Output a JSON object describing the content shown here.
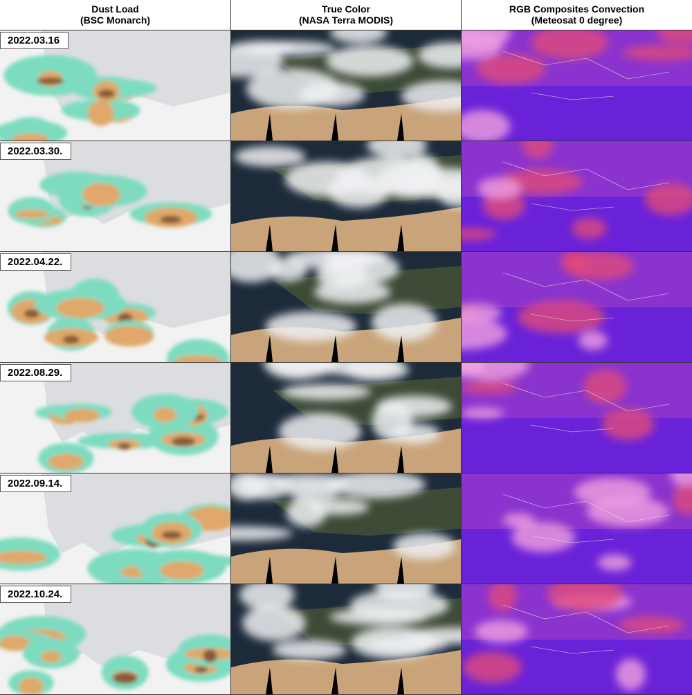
{
  "columns": [
    {
      "title": "Dust Load",
      "subtitle": "(BSC Monarch)"
    },
    {
      "title": "True Color",
      "subtitle": "(NASA Terra MODIS)"
    },
    {
      "title": "RGB Composites Convection",
      "subtitle": "(Meteosat 0 degree)"
    }
  ],
  "rows": [
    {
      "date": "2022.03.16"
    },
    {
      "date": "2022.03.30."
    },
    {
      "date": "2022.04.22."
    },
    {
      "date": "2022.08.29."
    },
    {
      "date": "2022.09.14."
    },
    {
      "date": "2022.10.24."
    }
  ]
}
